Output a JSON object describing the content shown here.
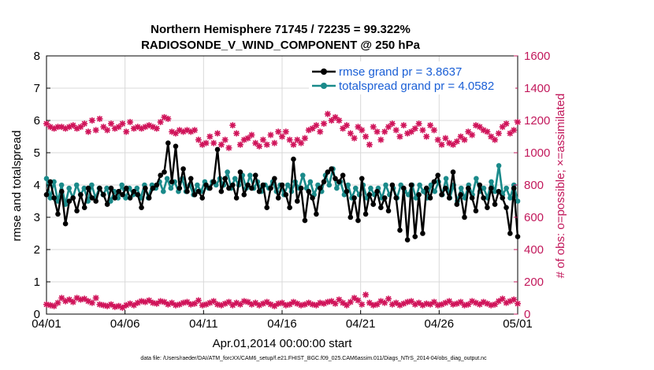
{
  "colors": {
    "rmse": "#000000",
    "spread": "#1a8a8a",
    "obs": "#d0145a",
    "right_axis": "#c2185b",
    "legend_text": "#1a5fd6",
    "grid": "#d9d9d9"
  },
  "chart_data": {
    "type": "line",
    "title": [
      "Northern Hemisphere 71745 / 72235 = 99.322%",
      "RADIOSONDE_V_WIND_COMPONENT @ 250 hPa"
    ],
    "xlabel": "Apr.01,2014 00:00:00 start",
    "ylabel": "rmse and totalspread",
    "ylabel_right": "# of obs: o=possible; ×=assimilated",
    "x_ticks": [
      "04/01",
      "04/06",
      "04/11",
      "04/16",
      "04/21",
      "04/26",
      "05/01"
    ],
    "x_range_days": [
      0,
      30
    ],
    "ylim": [
      0,
      8
    ],
    "y_ticks": [
      "0",
      "1",
      "2",
      "3",
      "4",
      "5",
      "6",
      "7",
      "8"
    ],
    "ylim_right": [
      0,
      1600
    ],
    "y_ticks_right": [
      "0",
      "200",
      "400",
      "600",
      "800",
      "1000",
      "1200",
      "1400",
      "1600"
    ],
    "grid": true,
    "legend_position": "top-right",
    "legend": [
      "rmse grand pr = 3.8637",
      "totalspread grand pr = 4.0582"
    ],
    "series": [
      {
        "name": "rmse",
        "axis": "left",
        "values": [
          3.7,
          4.1,
          3.6,
          3.1,
          3.8,
          2.8,
          3.5,
          3.6,
          3.2,
          3.7,
          3.3,
          3.9,
          3.6,
          3.5,
          3.9,
          3.7,
          3.4,
          3.9,
          3.6,
          3.8,
          3.7,
          3.9,
          3.6,
          3.8,
          3.7,
          3.3,
          3.9,
          3.6,
          3.9,
          4.0,
          4.3,
          4.4,
          5.3,
          4.1,
          5.2,
          3.9,
          4.5,
          3.8,
          4.2,
          3.7,
          3.8,
          3.6,
          4.0,
          3.9,
          4.1,
          5.1,
          3.8,
          4.2,
          3.9,
          4.0,
          3.6,
          4.4,
          3.7,
          4.0,
          3.9,
          4.3,
          3.8,
          4.0,
          3.3,
          3.9,
          4.2,
          3.6,
          4.0,
          3.7,
          3.3,
          4.8,
          3.5,
          3.9,
          2.9,
          3.8,
          3.6,
          3.1,
          3.9,
          4.1,
          4.4,
          4.5,
          4.2,
          4.1,
          4.3,
          3.8,
          3.0,
          3.6,
          2.9,
          4.2,
          3.1,
          3.7,
          3.4,
          3.8,
          3.3,
          3.6,
          3.2,
          4.0,
          3.6,
          2.6,
          3.9,
          2.3,
          4.0,
          2.4,
          3.7,
          2.5,
          3.9,
          3.6,
          4.1,
          4.3,
          3.7,
          3.9,
          3.6,
          4.4,
          3.4,
          3.7,
          3.0,
          3.9,
          3.6,
          3.2,
          4.0,
          3.6,
          3.3,
          3.9,
          3.4,
          3.8,
          3.6,
          3.3,
          2.5,
          3.9,
          2.4
        ]
      },
      {
        "name": "totalspread",
        "axis": "left",
        "values": [
          4.2,
          3.6,
          4.1,
          3.5,
          4.0,
          3.4,
          3.9,
          3.6,
          4.0,
          3.7,
          3.9,
          3.5,
          4.0,
          3.6,
          3.9,
          3.7,
          3.9,
          3.5,
          3.8,
          3.6,
          4.0,
          3.6,
          3.9,
          3.7,
          3.9,
          3.6,
          4.0,
          3.6,
          4.0,
          3.9,
          4.1,
          3.8,
          4.2,
          3.9,
          4.1,
          3.8,
          4.2,
          3.8,
          4.0,
          3.7,
          4.0,
          3.8,
          4.1,
          3.9,
          4.1,
          4.0,
          4.2,
          4.0,
          4.4,
          3.9,
          4.2,
          4.0,
          4.3,
          3.9,
          4.3,
          3.9,
          4.1,
          3.8,
          4.0,
          3.9,
          4.1,
          3.8,
          4.0,
          3.7,
          4.0,
          3.8,
          4.1,
          3.9,
          4.3,
          3.9,
          4.1,
          3.7,
          4.0,
          3.8,
          4.3,
          4.0,
          4.5,
          3.9,
          4.1,
          3.7,
          4.0,
          3.6,
          3.9,
          3.7,
          4.0,
          3.6,
          3.9,
          3.7,
          3.9,
          3.6,
          4.0,
          3.7,
          3.9,
          3.6,
          4.0,
          3.8,
          3.7,
          4.0,
          3.6,
          4.0,
          3.8,
          3.6,
          4.0,
          3.8,
          4.1,
          3.7,
          4.2,
          3.6,
          4.0,
          3.5,
          3.9,
          3.6,
          4.0,
          3.7,
          4.2,
          3.8,
          3.9,
          3.6,
          4.1,
          3.8,
          4.6,
          3.7,
          3.9,
          3.6,
          4.0,
          3.5
        ]
      },
      {
        "name": "obs_possible",
        "axis": "right",
        "values": [
          1180,
          1160,
          1150,
          1160,
          1160,
          1150,
          1160,
          1170,
          1150,
          1160,
          1180,
          1130,
          1200,
          1140,
          1210,
          1160,
          1140,
          1180,
          1150,
          1160,
          1180,
          1130,
          1190,
          1150,
          1160,
          1150,
          1160,
          1170,
          1160,
          1150,
          1190,
          1220,
          1210,
          1130,
          1120,
          1140,
          1130,
          1140,
          1130,
          1140,
          1080,
          1050,
          1060,
          1100,
          1060,
          1120,
          1050,
          1080,
          1030,
          1170,
          1120,
          1050,
          1080,
          1090,
          1110,
          1060,
          1040,
          1080,
          1050,
          1110,
          1060,
          1130,
          1100,
          1130,
          1080,
          1050,
          1080,
          1060,
          1090,
          1140,
          1150,
          1170,
          1130,
          1180,
          1240,
          1200,
          1220,
          1200,
          1150,
          1170,
          1120,
          1090,
          1160,
          1140,
          1100,
          1050,
          1160,
          1130,
          1080,
          1130,
          1160,
          1180,
          1140,
          1100,
          1170,
          1120,
          1130,
          1150,
          1180,
          1140,
          1100,
          1170,
          1140,
          1080,
          1050,
          1090,
          1060,
          1050,
          1070,
          1100,
          1080,
          1130,
          1110,
          1170,
          1160,
          1140,
          1130,
          1100,
          1080,
          1120,
          1160,
          1180,
          1120,
          1140,
          1190
        ]
      },
      {
        "name": "obs_assimilated",
        "axis": "right",
        "values": [
          60,
          55,
          50,
          70,
          100,
          80,
          90,
          75,
          100,
          90,
          95,
          80,
          70,
          100,
          60,
          55,
          50,
          60,
          45,
          50,
          40,
          55,
          65,
          55,
          70,
          80,
          75,
          85,
          70,
          65,
          80,
          75,
          60,
          70,
          55,
          60,
          70,
          75,
          60,
          65,
          85,
          55,
          60,
          70,
          80,
          60,
          55,
          65,
          75,
          55,
          70,
          60,
          80,
          75,
          60,
          70,
          55,
          65,
          75,
          60,
          50,
          65,
          70,
          55,
          60,
          75,
          65,
          55,
          60,
          70,
          60,
          55,
          70,
          65,
          75,
          80,
          65,
          90,
          70,
          55,
          75,
          100,
          85,
          60,
          120,
          70,
          55,
          60,
          80,
          70,
          95,
          60,
          70,
          55,
          65,
          75,
          80,
          60,
          70,
          55,
          65,
          60,
          75,
          55,
          60,
          70,
          80,
          60,
          65,
          75,
          55,
          60,
          80,
          70,
          60,
          75,
          65,
          55,
          60,
          80,
          95,
          70,
          80,
          90,
          65
        ]
      }
    ]
  },
  "footnote": "data file: /Users/raeder/DAI/ATM_forcXX/CAM6_setup/f.e21.FHIST_BGC.f09_025.CAM6assim.011/Diags_NTrS_2014-04/obs_diag_output.nc"
}
